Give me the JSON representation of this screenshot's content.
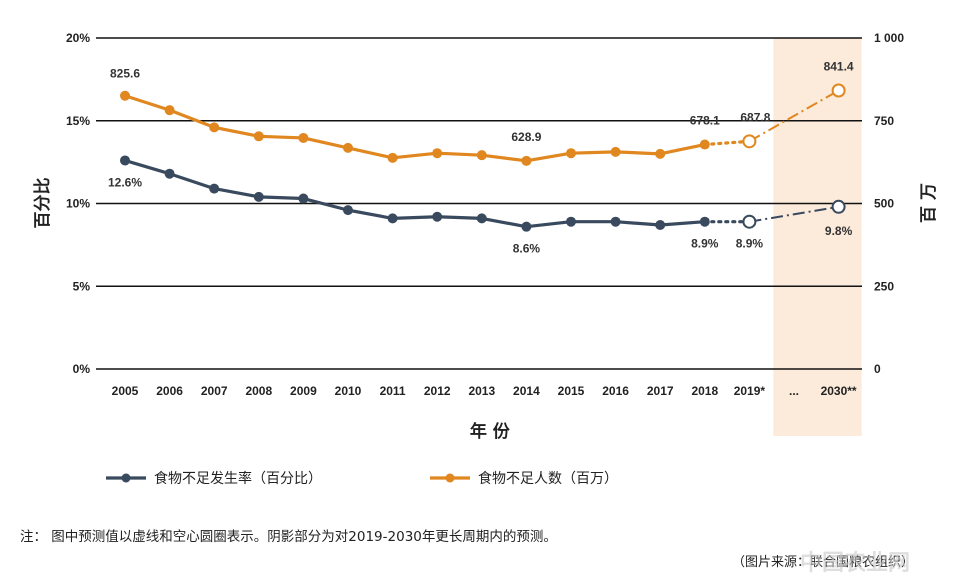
{
  "chart_data": {
    "type": "line",
    "categories": [
      "2005",
      "2006",
      "2007",
      "2008",
      "2009",
      "2010",
      "2011",
      "2012",
      "2013",
      "2014",
      "2015",
      "2016",
      "2017",
      "2018",
      "2019*",
      "...",
      "2030**"
    ],
    "ylabel": "百分比",
    "y2label": "百万",
    "xlabel": "年 份",
    "ylim": [
      0,
      20
    ],
    "y2lim": [
      0,
      1000
    ],
    "yticks": [
      "0%",
      "5%",
      "10%",
      "15%",
      "20%"
    ],
    "y2ticks": [
      "0",
      "250",
      "500",
      "750",
      "1 000"
    ],
    "grid": true,
    "shaded_region": [
      "2019*",
      "2030**"
    ],
    "series": [
      {
        "name": "食物不足发生率（百分比）",
        "axis": "left",
        "color": "#3a4a5e",
        "values": [
          12.6,
          11.8,
          10.9,
          10.4,
          10.3,
          9.6,
          9.1,
          9.2,
          9.1,
          8.6,
          8.9,
          8.9,
          8.7,
          8.9,
          8.9,
          null,
          9.8
        ],
        "labels": [
          {
            "index": 0,
            "text": "12.6%"
          },
          {
            "index": 9,
            "text": "8.6%"
          },
          {
            "index": 13,
            "text": "8.9%"
          },
          {
            "index": 14,
            "text": "8.9%"
          },
          {
            "index": 16,
            "text": "9.8%"
          }
        ]
      },
      {
        "name": "食物不足人数（百万）",
        "axis": "right",
        "color": "#e0871f",
        "values": [
          825.6,
          782,
          730,
          703,
          698,
          668,
          638,
          652,
          646,
          628.9,
          652,
          656,
          650,
          678.1,
          687.8,
          null,
          841.4
        ],
        "labels": [
          {
            "index": 0,
            "text": "825.6"
          },
          {
            "index": 9,
            "text": "628.9"
          },
          {
            "index": 13,
            "text": "678.1"
          },
          {
            "index": 14,
            "text": "687.8"
          },
          {
            "index": 16,
            "text": "841.4"
          }
        ]
      }
    ]
  },
  "footer": {
    "note": "注：  图中预测值以虚线和空心圆圈表示。阴影部分为对2019-2030年更长周期内的预测。",
    "source": "（图片来源：联合国粮农组织）",
    "watermark": "中国农业网"
  }
}
